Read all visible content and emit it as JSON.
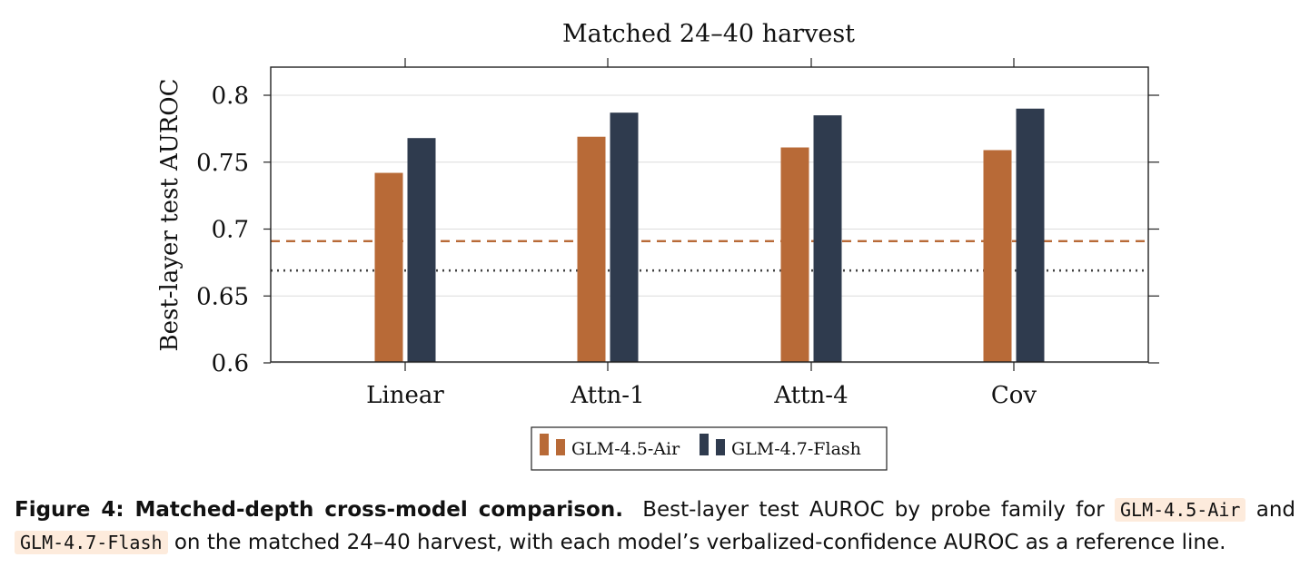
{
  "chart_data": {
    "type": "bar",
    "title": "Matched 24–40 harvest",
    "ylabel": "Best-layer test AUROC",
    "xlabel": "",
    "categories": [
      "Linear",
      "Attn-1",
      "Attn-4",
      "Cov"
    ],
    "ylim": [
      0.6,
      0.82
    ],
    "yticks": [
      0.6,
      0.65,
      0.7,
      0.75,
      0.8
    ],
    "ytick_labels": [
      "0.6",
      "0.65",
      "0.7",
      "0.75",
      "0.8"
    ],
    "grid": "horizontal",
    "legend_position": "bottom-center",
    "series": [
      {
        "name": "GLM-4.5-Air",
        "color": "#b86a37",
        "values": [
          0.742,
          0.769,
          0.761,
          0.759
        ]
      },
      {
        "name": "GLM-4.7-Flash",
        "color": "#2f3b4e",
        "values": [
          0.768,
          0.787,
          0.785,
          0.79
        ]
      }
    ],
    "reference_lines": [
      {
        "series": "GLM-4.5-Air",
        "value": 0.691,
        "style": "dashed",
        "color": "#b86a37"
      },
      {
        "series": "GLM-4.7-Flash",
        "value": 0.669,
        "style": "dotted",
        "color": "#444444"
      }
    ]
  },
  "caption": {
    "label": "Figure 4: Matched-depth cross-model comparison.",
    "text_1": "Best-layer test AUROC by probe family for",
    "code_1": "GLM-4.5-Air",
    "text_2": "and",
    "code_2": "GLM-4.7-Flash",
    "text_3": "on the matched 24–40 harvest, with each model’s verbalized-confidence AUROC as a reference line."
  }
}
